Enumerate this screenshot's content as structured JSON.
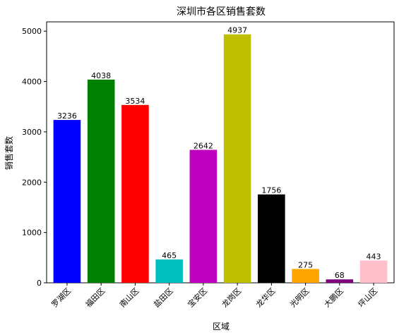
{
  "chart_data": {
    "type": "bar",
    "title": "深圳市各区销售套数",
    "xlabel": "区域",
    "ylabel": "销售套数",
    "categories": [
      "罗湖区",
      "福田区",
      "南山区",
      "盐田区",
      "宝安区",
      "龙岗区",
      "龙华区",
      "光明区",
      "大鹏区",
      "坪山区"
    ],
    "values": [
      3236,
      4038,
      3534,
      465,
      2642,
      4937,
      1756,
      275,
      68,
      443
    ],
    "colors": [
      "#0000ff",
      "#008000",
      "#ff0000",
      "#00bfbf",
      "#bf00bf",
      "#bfbf00",
      "#000000",
      "#ffa500",
      "#800080",
      "#ffc0cb"
    ],
    "ylim": [
      0,
      5185
    ],
    "yticks": [
      0,
      1000,
      2000,
      3000,
      4000,
      5000
    ],
    "grid": false,
    "legend": "none"
  }
}
